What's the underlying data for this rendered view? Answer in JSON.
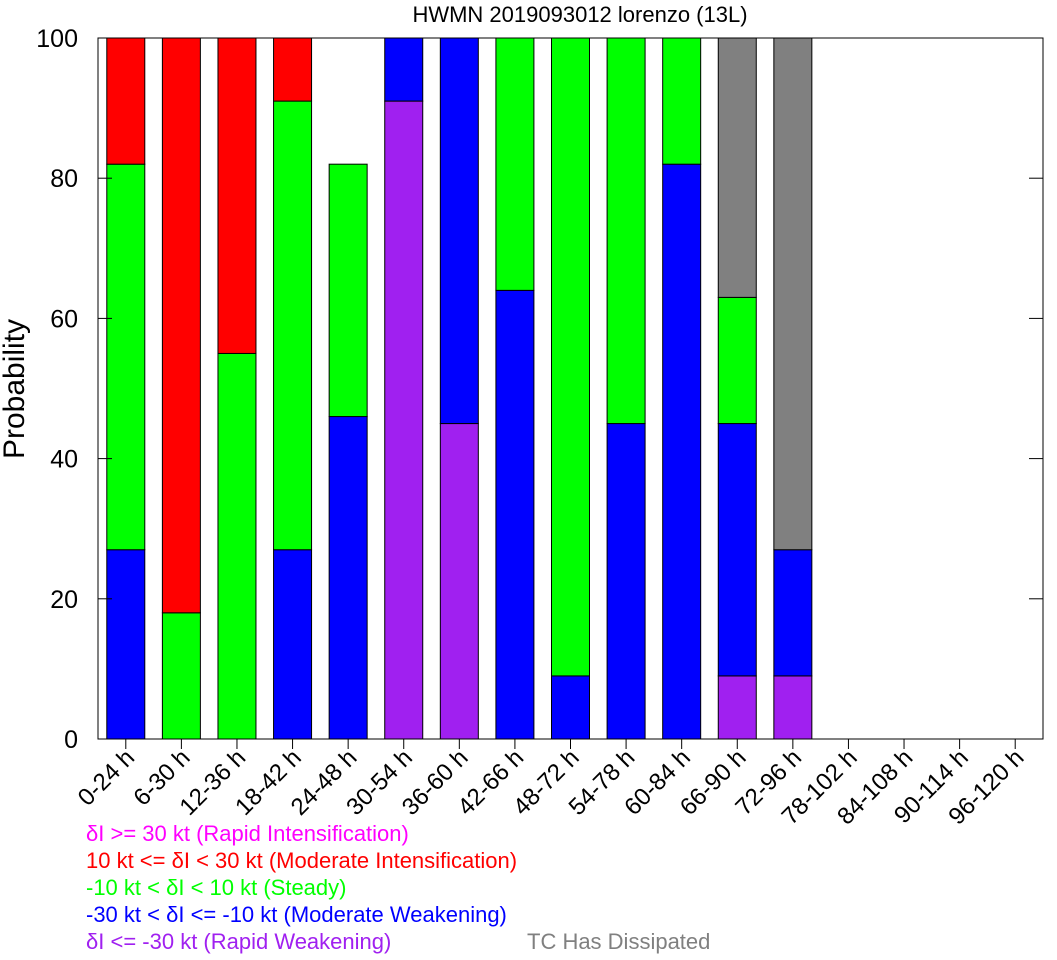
{
  "chart_data": {
    "type": "bar",
    "stacked": true,
    "title": "HWMN 2019093012 lorenzo (13L)",
    "xlabel": "",
    "ylabel": "Probability",
    "ylim": [
      0,
      100
    ],
    "yticks": [
      0,
      20,
      40,
      60,
      80,
      100
    ],
    "grid": false,
    "categories": [
      "0-24 h",
      "6-30 h",
      "12-36 h",
      "18-42 h",
      "24-48 h",
      "30-54 h",
      "36-60 h",
      "42-66 h",
      "48-72 h",
      "54-78 h",
      "60-84 h",
      "66-90 h",
      "72-96 h",
      "78-102 h",
      "84-108 h",
      "90-114 h",
      "96-120 h"
    ],
    "series": [
      {
        "name": "δI <= -30 kt (Rapid Weakening)",
        "color": "#a020f0",
        "values": [
          0,
          0,
          0,
          0,
          0,
          91,
          45,
          0,
          0,
          0,
          0,
          9,
          9,
          0,
          0,
          0,
          0
        ]
      },
      {
        "name": "-30 kt < δI <= -10 kt (Moderate Weakening)",
        "color": "#0000ff",
        "values": [
          27,
          0,
          0,
          27,
          46,
          9,
          55,
          64,
          9,
          45,
          82,
          36,
          18,
          0,
          0,
          0,
          0
        ]
      },
      {
        "name": "-10 kt < δI < 10 kt (Steady)",
        "color": "#00ff00",
        "values": [
          55,
          18,
          55,
          64,
          36,
          0,
          0,
          36,
          91,
          55,
          18,
          18,
          0,
          0,
          0,
          0,
          0
        ]
      },
      {
        "name": "10 kt <= δI < 30 kt (Moderate Intensification)",
        "color": "#ff0000",
        "values": [
          18,
          82,
          45,
          9,
          0,
          0,
          0,
          0,
          0,
          0,
          0,
          0,
          0,
          0,
          0,
          0,
          0
        ]
      },
      {
        "name": "δI >= 30 kt (Rapid Intensification)",
        "color": "#ff00ff",
        "values": [
          0,
          0,
          0,
          0,
          0,
          0,
          0,
          0,
          0,
          0,
          0,
          0,
          0,
          0,
          0,
          0,
          0
        ]
      },
      {
        "name": "TC Has Dissipated",
        "color": "#808080",
        "values": [
          0,
          0,
          0,
          0,
          0,
          0,
          0,
          0,
          0,
          0,
          0,
          37,
          73,
          0,
          0,
          0,
          0
        ]
      }
    ],
    "stack_order": [
      "δI <= -30 kt (Rapid Weakening)",
      "-30 kt < δI <= -10 kt (Moderate Weakening)",
      "-10 kt < δI < 10 kt (Steady)",
      "10 kt <= δI < 30 kt (Moderate Intensification)",
      "δI >= 30 kt (Rapid Intensification)",
      "TC Has Dissipated"
    ],
    "legend": {
      "placement": "bottom",
      "entries": [
        {
          "text": "δI >= 30 kt (Rapid Intensification)",
          "color": "#ff00ff"
        },
        {
          "text": "10 kt <= δI < 30 kt (Moderate Intensification)",
          "color": "#ff0000"
        },
        {
          "text": "-10 kt < δI < 10 kt (Steady)",
          "color": "#00ff00"
        },
        {
          "text": "-30 kt < δI <= -10 kt (Moderate Weakening)",
          "color": "#0000ff"
        },
        {
          "text": "δI <= -30 kt (Rapid Weakening)",
          "color": "#a020f0"
        },
        {
          "text": "TC Has Dissipated",
          "color": "#808080"
        }
      ]
    }
  }
}
